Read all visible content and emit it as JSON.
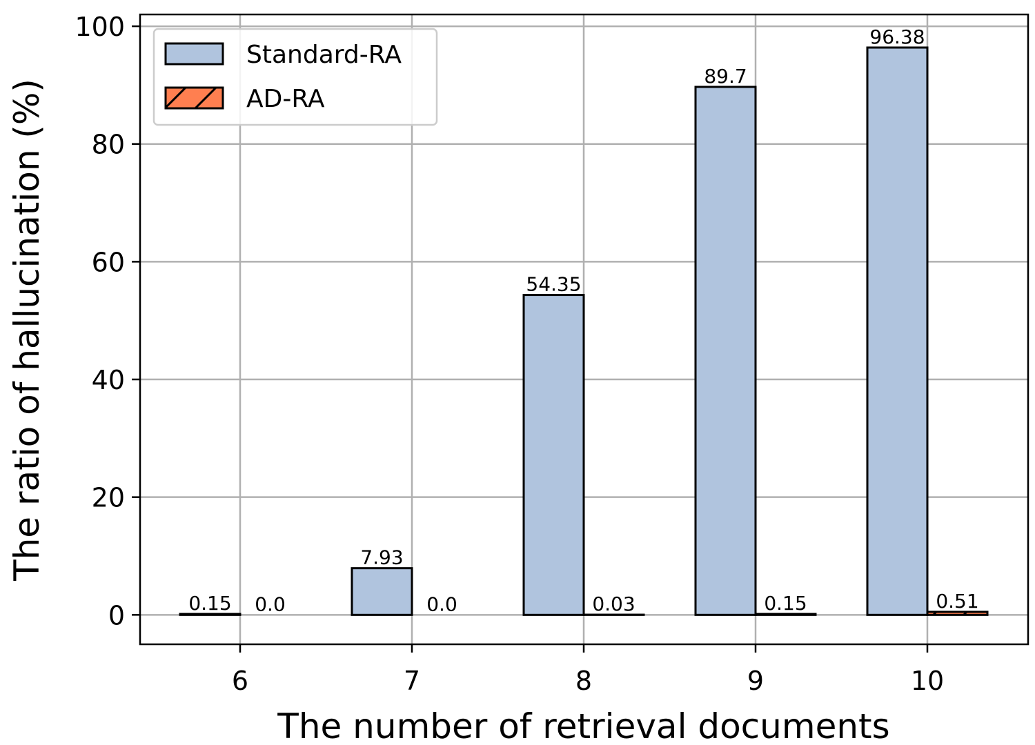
{
  "chart_data": {
    "type": "bar",
    "xlabel": "The number of retrieval documents",
    "ylabel": "The ratio of hallucination (%)",
    "categories": [
      "6",
      "7",
      "8",
      "9",
      "10"
    ],
    "series": [
      {
        "name": "Standard-RA",
        "values": [
          0.15,
          7.93,
          54.35,
          89.7,
          96.38
        ],
        "labels": [
          "0.15",
          "7.93",
          "54.35",
          "89.7",
          "96.38"
        ],
        "color": "#b0c4de",
        "hatch": "none"
      },
      {
        "name": "AD-RA",
        "values": [
          0.0,
          0.0,
          0.03,
          0.15,
          0.51
        ],
        "labels": [
          "0.0",
          "0.0",
          "0.03",
          "0.15",
          "0.51"
        ],
        "color": "#ff7f50",
        "hatch": "diagonal"
      }
    ],
    "ylim": [
      -5,
      102
    ],
    "yticks": [
      0,
      20,
      40,
      60,
      80,
      100
    ],
    "grid": true,
    "legend_position": "top-left"
  }
}
